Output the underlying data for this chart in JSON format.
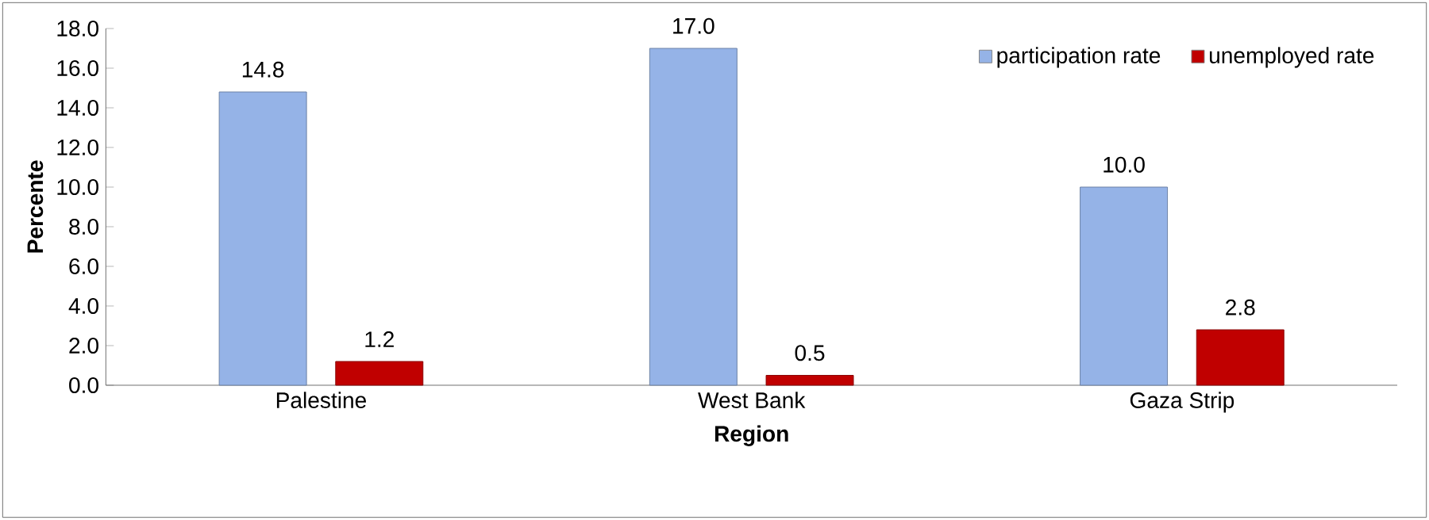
{
  "chart_data": {
    "type": "bar",
    "xlabel": "Region",
    "ylabel": "Percente",
    "categories": [
      "Palestine",
      "West Bank",
      "Gaza Strip"
    ],
    "series": [
      {
        "name": "participation rate",
        "color": "#95b3e7",
        "values": [
          14.8,
          17.0,
          10.0
        ]
      },
      {
        "name": "unemployed rate",
        "color": "#c00000",
        "values": [
          1.2,
          0.5,
          2.8
        ]
      }
    ],
    "ylim": [
      0,
      18
    ],
    "yticks": [
      {
        "value": 0,
        "label": "0.0"
      },
      {
        "value": 2,
        "label": "2.0"
      },
      {
        "value": 4,
        "label": "4.0"
      },
      {
        "value": 6,
        "label": "6.0"
      },
      {
        "value": 8,
        "label": "8.0"
      },
      {
        "value": 10,
        "label": "10.0"
      },
      {
        "value": 12,
        "label": "12.0"
      },
      {
        "value": 14,
        "label": "14.0"
      },
      {
        "value": 16,
        "label": "16.0"
      },
      {
        "value": 18,
        "label": "18.0"
      }
    ],
    "value_labels": [
      [
        "14.8",
        "17.0",
        "10.0"
      ],
      [
        "1.2",
        "0.5",
        "2.8"
      ]
    ],
    "legend": "top right",
    "grid": false
  }
}
